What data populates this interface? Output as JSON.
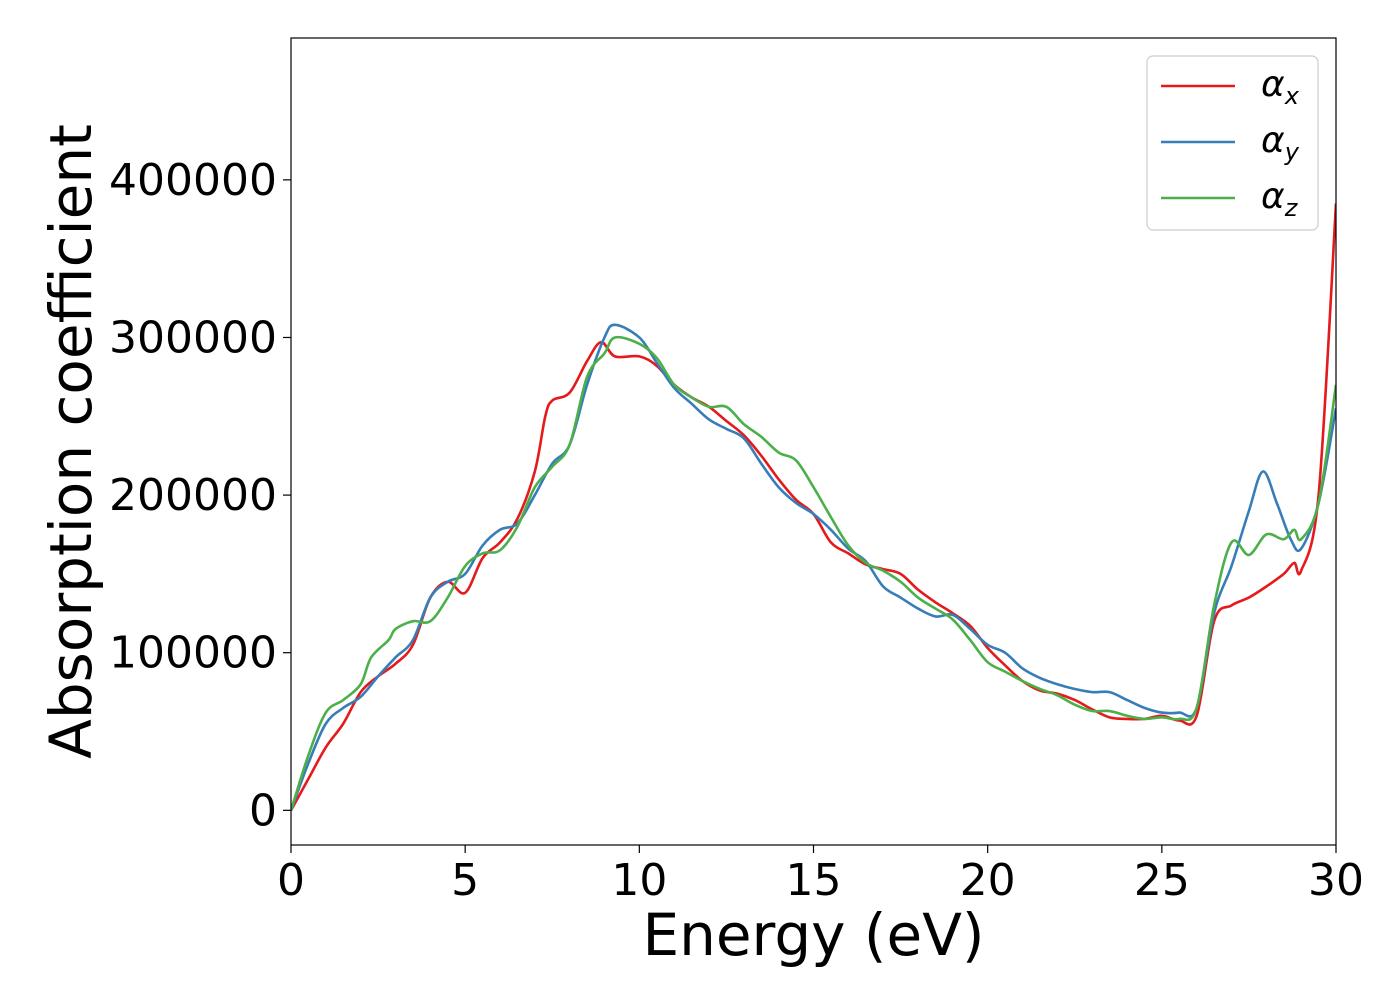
{
  "chart_data": {
    "type": "line",
    "xlabel": "Energy (eV)",
    "ylabel": "Absorption coefficient",
    "xlim": [
      0,
      30
    ],
    "ylim": [
      -22000,
      490000
    ],
    "x_ticks": [
      0,
      5,
      10,
      15,
      20,
      25,
      30
    ],
    "y_ticks": [
      0,
      100000,
      200000,
      300000,
      400000
    ],
    "grid": false,
    "legend_position": "top-right",
    "series": [
      {
        "name": "α_x",
        "label_main": "α",
        "label_sub": "x",
        "color": "#e41a1c",
        "points": [
          [
            0,
            0
          ],
          [
            0.5,
            20000
          ],
          [
            1,
            40000
          ],
          [
            1.5,
            55000
          ],
          [
            2,
            75000
          ],
          [
            2.5,
            85000
          ],
          [
            3,
            93000
          ],
          [
            3.5,
            105000
          ],
          [
            4,
            135000
          ],
          [
            4.5,
            145000
          ],
          [
            5,
            138000
          ],
          [
            5.5,
            160000
          ],
          [
            6,
            170000
          ],
          [
            6.5,
            185000
          ],
          [
            7,
            215000
          ],
          [
            7.3,
            250000
          ],
          [
            7.5,
            260000
          ],
          [
            8,
            265000
          ],
          [
            8.5,
            285000
          ],
          [
            8.9,
            297000
          ],
          [
            9.3,
            288000
          ],
          [
            10,
            288000
          ],
          [
            10.5,
            282000
          ],
          [
            11,
            270000
          ],
          [
            11.5,
            262000
          ],
          [
            12,
            256000
          ],
          [
            12.5,
            247000
          ],
          [
            13,
            238000
          ],
          [
            13.5,
            225000
          ],
          [
            14,
            210000
          ],
          [
            14.5,
            197000
          ],
          [
            15,
            188000
          ],
          [
            15.5,
            170000
          ],
          [
            16,
            163000
          ],
          [
            16.5,
            156000
          ],
          [
            17,
            153000
          ],
          [
            17.5,
            150000
          ],
          [
            18,
            140000
          ],
          [
            18.5,
            132000
          ],
          [
            19,
            125000
          ],
          [
            19.5,
            117000
          ],
          [
            20,
            103000
          ],
          [
            20.5,
            92000
          ],
          [
            21,
            82000
          ],
          [
            21.5,
            76000
          ],
          [
            22,
            74000
          ],
          [
            22.5,
            70000
          ],
          [
            23,
            64000
          ],
          [
            23.5,
            59000
          ],
          [
            24,
            58000
          ],
          [
            24.5,
            58000
          ],
          [
            25,
            60000
          ],
          [
            25.5,
            57000
          ],
          [
            26,
            60000
          ],
          [
            26.5,
            120000
          ],
          [
            27,
            130000
          ],
          [
            27.5,
            135000
          ],
          [
            28,
            142000
          ],
          [
            28.5,
            150000
          ],
          [
            28.8,
            157000
          ],
          [
            29,
            152000
          ],
          [
            29.5,
            200000
          ],
          [
            30,
            385000
          ]
        ]
      },
      {
        "name": "α_y",
        "label_main": "α",
        "label_sub": "y",
        "color": "#377eb8",
        "points": [
          [
            0,
            0
          ],
          [
            0.5,
            30000
          ],
          [
            1,
            55000
          ],
          [
            1.5,
            65000
          ],
          [
            2,
            72000
          ],
          [
            2.5,
            85000
          ],
          [
            3,
            97000
          ],
          [
            3.5,
            108000
          ],
          [
            4,
            135000
          ],
          [
            4.5,
            145000
          ],
          [
            5,
            150000
          ],
          [
            5.5,
            168000
          ],
          [
            6,
            178000
          ],
          [
            6.5,
            182000
          ],
          [
            7,
            200000
          ],
          [
            7.5,
            220000
          ],
          [
            8,
            232000
          ],
          [
            8.5,
            270000
          ],
          [
            9,
            300000
          ],
          [
            9.3,
            308000
          ],
          [
            10,
            300000
          ],
          [
            10.5,
            284000
          ],
          [
            11,
            268000
          ],
          [
            11.5,
            258000
          ],
          [
            12,
            248000
          ],
          [
            12.5,
            242000
          ],
          [
            13,
            236000
          ],
          [
            13.5,
            220000
          ],
          [
            14,
            205000
          ],
          [
            14.5,
            195000
          ],
          [
            15,
            188000
          ],
          [
            15.5,
            178000
          ],
          [
            16,
            166000
          ],
          [
            16.5,
            158000
          ],
          [
            17,
            142000
          ],
          [
            17.5,
            135000
          ],
          [
            18,
            128000
          ],
          [
            18.5,
            123000
          ],
          [
            19,
            124000
          ],
          [
            19.5,
            115000
          ],
          [
            20,
            105000
          ],
          [
            20.5,
            100000
          ],
          [
            21,
            90000
          ],
          [
            21.5,
            84000
          ],
          [
            22,
            80000
          ],
          [
            22.5,
            77000
          ],
          [
            23,
            75000
          ],
          [
            23.5,
            75000
          ],
          [
            24,
            70000
          ],
          [
            24.5,
            65000
          ],
          [
            25,
            62000
          ],
          [
            25.5,
            62000
          ],
          [
            26,
            65000
          ],
          [
            26.5,
            125000
          ],
          [
            27,
            155000
          ],
          [
            27.5,
            190000
          ],
          [
            27.9,
            215000
          ],
          [
            28.3,
            195000
          ],
          [
            28.7,
            172000
          ],
          [
            29,
            166000
          ],
          [
            29.5,
            195000
          ],
          [
            30,
            255000
          ]
        ]
      },
      {
        "name": "α_z",
        "label_main": "α",
        "label_sub": "z",
        "color": "#4daf4a",
        "points": [
          [
            0,
            0
          ],
          [
            0.5,
            35000
          ],
          [
            1,
            62000
          ],
          [
            1.5,
            70000
          ],
          [
            2,
            80000
          ],
          [
            2.3,
            97000
          ],
          [
            2.8,
            108000
          ],
          [
            3,
            115000
          ],
          [
            3.5,
            120000
          ],
          [
            4,
            120000
          ],
          [
            4.5,
            135000
          ],
          [
            5,
            155000
          ],
          [
            5.5,
            163000
          ],
          [
            6,
            165000
          ],
          [
            6.5,
            180000
          ],
          [
            7,
            205000
          ],
          [
            7.5,
            218000
          ],
          [
            8,
            232000
          ],
          [
            8.5,
            275000
          ],
          [
            9,
            290000
          ],
          [
            9.3,
            300000
          ],
          [
            10,
            296000
          ],
          [
            10.5,
            287000
          ],
          [
            11,
            270000
          ],
          [
            11.5,
            262000
          ],
          [
            12,
            256000
          ],
          [
            12.5,
            256000
          ],
          [
            13,
            245000
          ],
          [
            13.5,
            237000
          ],
          [
            14,
            227000
          ],
          [
            14.5,
            222000
          ],
          [
            15,
            205000
          ],
          [
            15.5,
            186000
          ],
          [
            16,
            168000
          ],
          [
            16.5,
            157000
          ],
          [
            17,
            152000
          ],
          [
            17.5,
            145000
          ],
          [
            18,
            135000
          ],
          [
            18.5,
            128000
          ],
          [
            19,
            121000
          ],
          [
            19.5,
            108000
          ],
          [
            20,
            94000
          ],
          [
            20.5,
            88000
          ],
          [
            21,
            82000
          ],
          [
            21.5,
            77000
          ],
          [
            22,
            73000
          ],
          [
            22.5,
            67000
          ],
          [
            23,
            63000
          ],
          [
            23.5,
            63000
          ],
          [
            24,
            60000
          ],
          [
            24.5,
            58000
          ],
          [
            25,
            59000
          ],
          [
            25.5,
            58000
          ],
          [
            26,
            65000
          ],
          [
            26.5,
            130000
          ],
          [
            27,
            170000
          ],
          [
            27.5,
            162000
          ],
          [
            28,
            175000
          ],
          [
            28.5,
            172000
          ],
          [
            28.8,
            178000
          ],
          [
            29,
            172000
          ],
          [
            29.5,
            195000
          ],
          [
            30,
            270000
          ]
        ]
      }
    ]
  }
}
